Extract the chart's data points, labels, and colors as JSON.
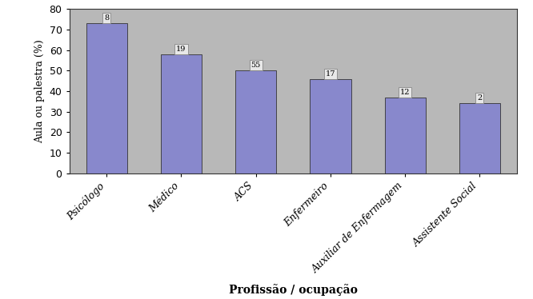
{
  "categories": [
    "Psicólogo",
    "Médico",
    "ACS",
    "Enfermeiro",
    "Auxiliar de Enfermagem",
    "Assistente Social"
  ],
  "values": [
    73,
    58,
    50,
    46,
    37,
    34
  ],
  "labels": [
    "8",
    "19",
    "55",
    "17",
    "12",
    "2"
  ],
  "bar_color": "#8888cc",
  "bar_edgecolor": "#333333",
  "ylabel": "Aula ou palestra (%)",
  "xlabel": "Profissão / ocupação",
  "ylim": [
    0,
    80
  ],
  "yticks": [
    0,
    10,
    20,
    30,
    40,
    50,
    60,
    70,
    80
  ],
  "plot_bg_color": "#b8b8b8",
  "fig_bg_color": "#ffffff",
  "label_box_facecolor": "#e8e8e8",
  "label_box_edgecolor": "#888888",
  "bar_width": 0.55
}
